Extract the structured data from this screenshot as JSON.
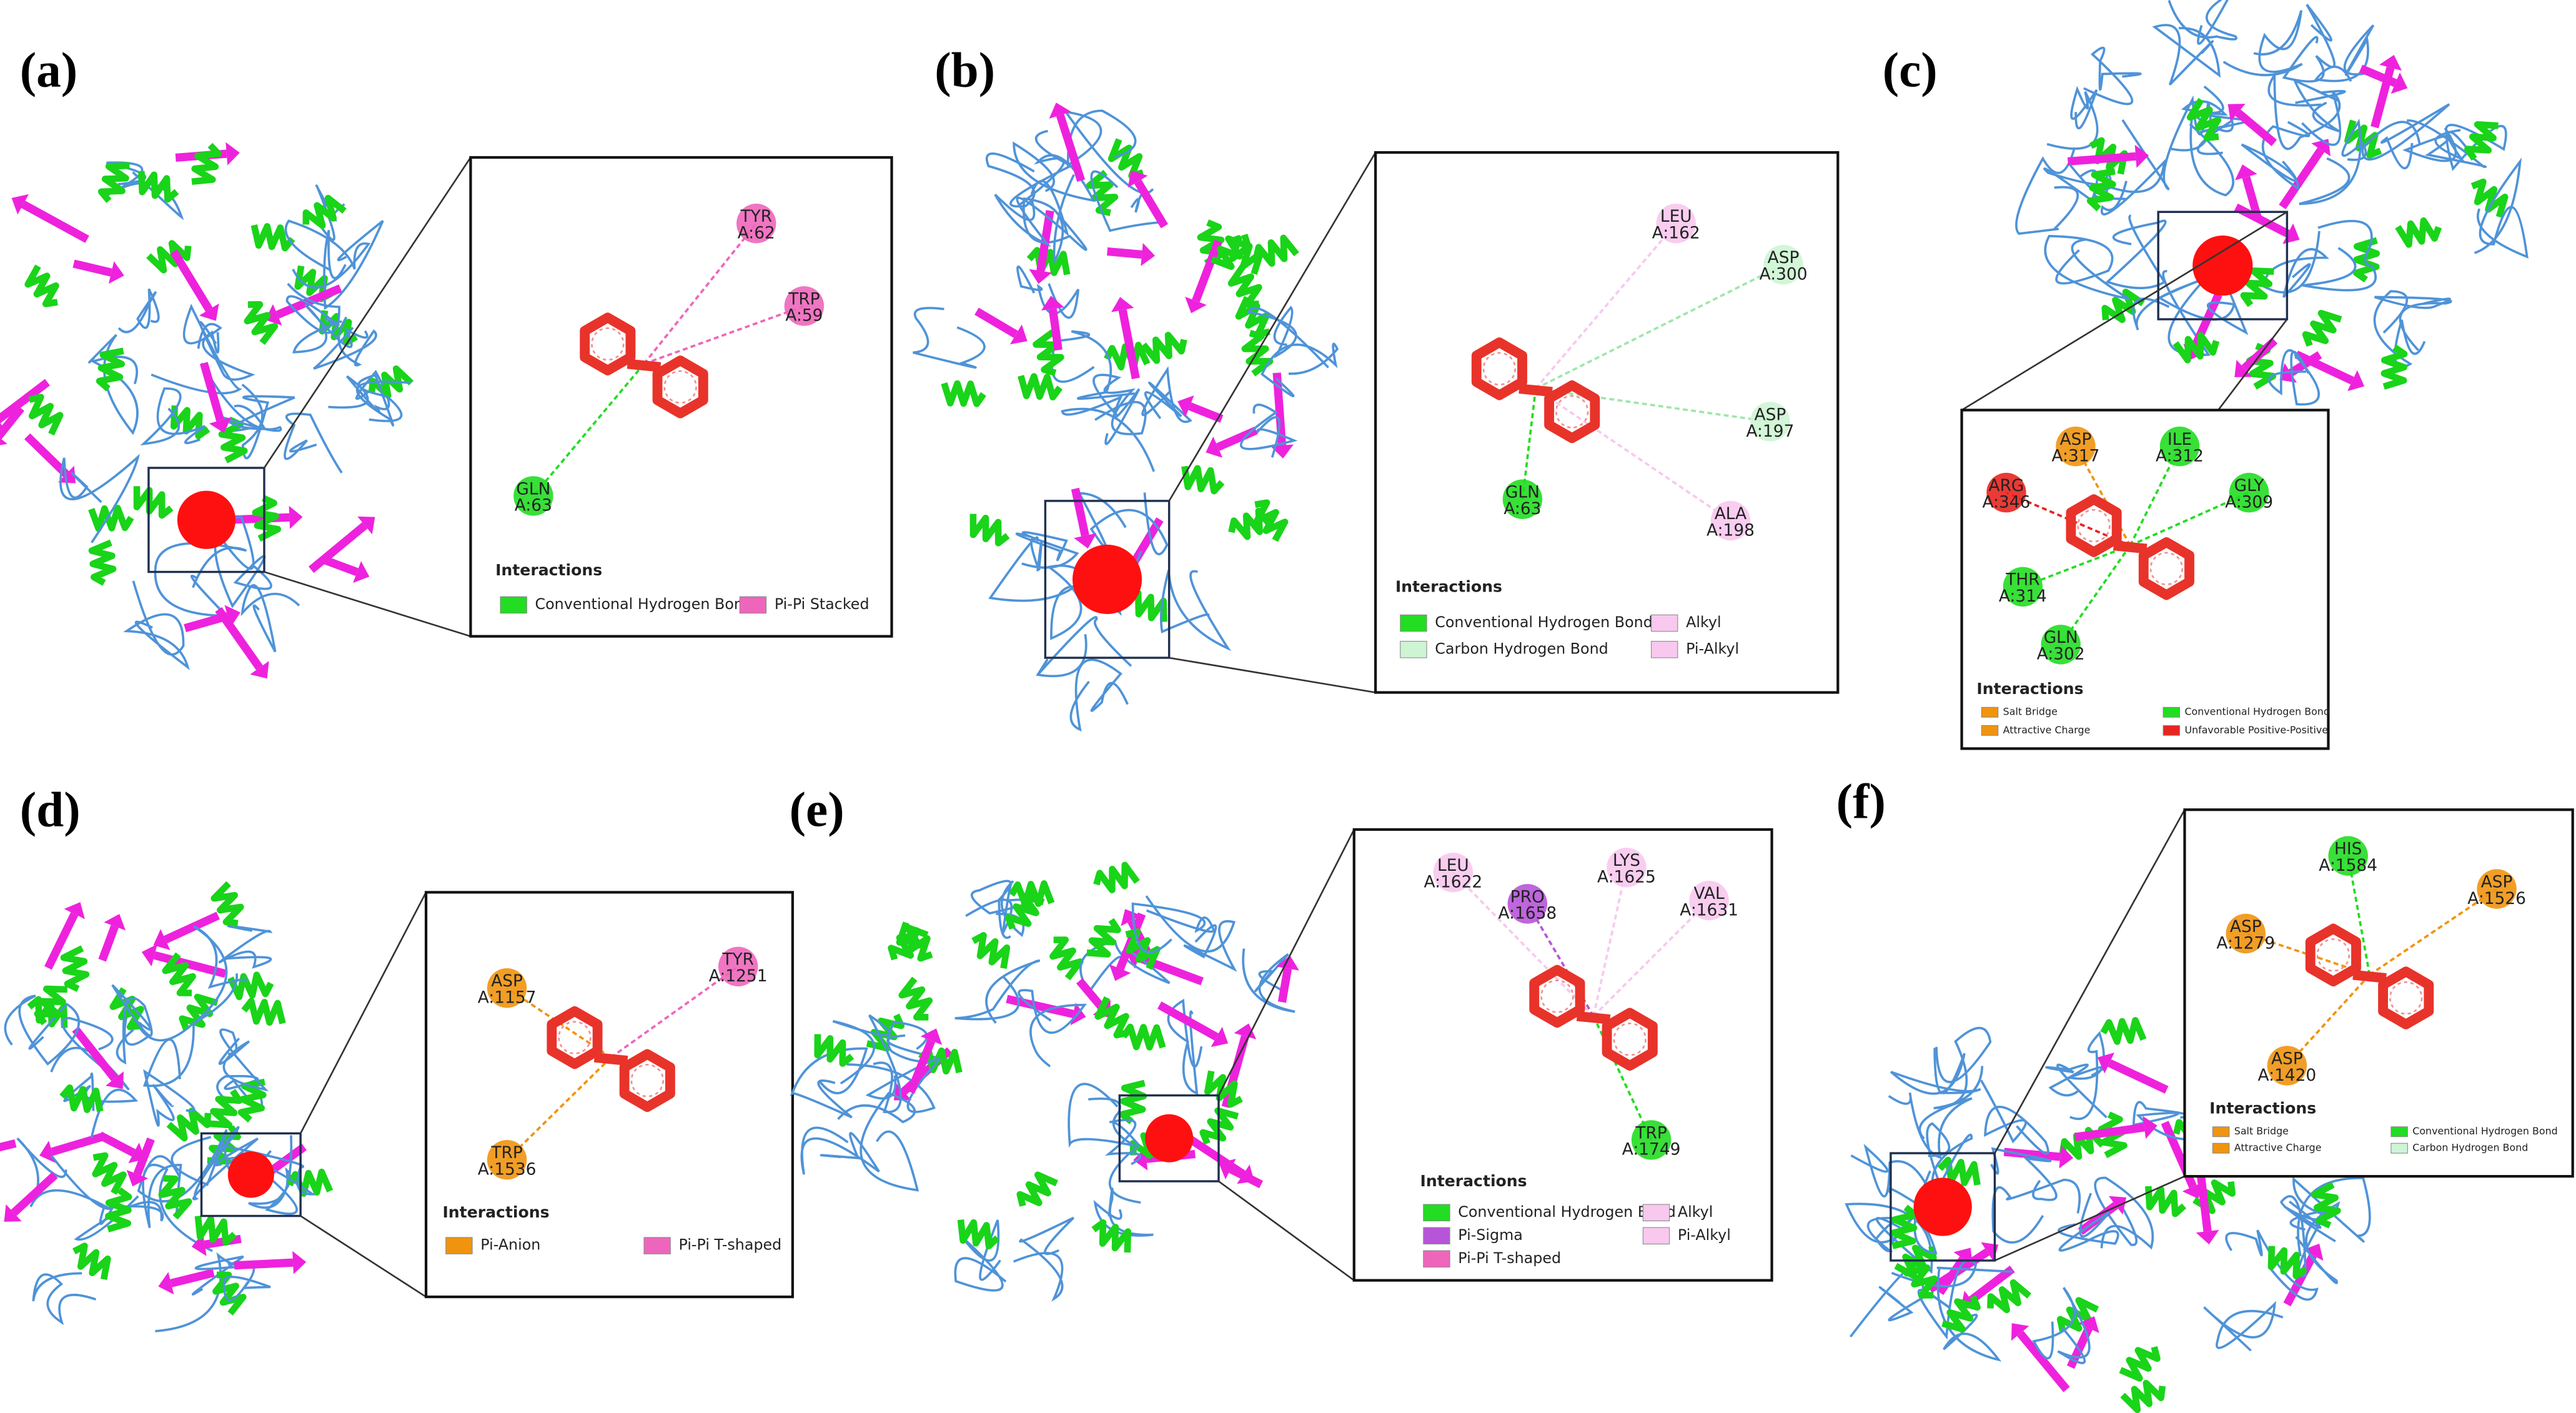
{
  "panels": [
    {
      "label": "(a)",
      "residues": [
        {
          "name": "TYR",
          "id": "A:62"
        },
        {
          "name": "TRP",
          "id": "A:59"
        },
        {
          "name": "GLN",
          "id": "A:63"
        }
      ],
      "legend": {
        "title": "Interactions",
        "items": [
          "Conventional Hydrogen Bond",
          "Pi-Pi Stacked"
        ]
      }
    },
    {
      "label": "(b)",
      "residues": [
        {
          "name": "LEU",
          "id": "A:162"
        },
        {
          "name": "ASP",
          "id": "A:300"
        },
        {
          "name": "ASP",
          "id": "A:197"
        },
        {
          "name": "GLN",
          "id": "A:63"
        },
        {
          "name": "ALA",
          "id": "A:198"
        }
      ],
      "legend": {
        "title": "Interactions",
        "items": [
          "Conventional Hydrogen Bond",
          "Carbon Hydrogen Bond",
          "Alkyl",
          "Pi-Alkyl"
        ]
      }
    },
    {
      "label": "(c)",
      "residues": [
        {
          "name": "ASP",
          "id": "A:317"
        },
        {
          "name": "ILE",
          "id": "A:312"
        },
        {
          "name": "ARG",
          "id": "A:346"
        },
        {
          "name": "GLY",
          "id": "A:309"
        },
        {
          "name": "THR",
          "id": "A:314"
        },
        {
          "name": "GLN",
          "id": "A:302"
        }
      ],
      "legend": {
        "title": "Interactions",
        "items": [
          "Salt Bridge",
          "Attractive Charge",
          "Conventional Hydrogen Bond",
          "Unfavorable Positive-Positive"
        ]
      }
    },
    {
      "label": "(d)",
      "residues": [
        {
          "name": "ASP",
          "id": "A:1157"
        },
        {
          "name": "TYR",
          "id": "A:1251"
        },
        {
          "name": "TRP",
          "id": "A:1536"
        }
      ],
      "legend": {
        "title": "Interactions",
        "items": [
          "Pi-Anion",
          "Pi-Pi T-shaped"
        ]
      }
    },
    {
      "label": "(e)",
      "residues": [
        {
          "name": "LEU",
          "id": "A:1622"
        },
        {
          "name": "PRO",
          "id": "A:1658"
        },
        {
          "name": "LYS",
          "id": "A:1625"
        },
        {
          "name": "VAL",
          "id": "A:1631"
        },
        {
          "name": "TRP",
          "id": "A:1749"
        }
      ],
      "legend": {
        "title": "Interactions",
        "items": [
          "Conventional Hydrogen Bond",
          "Pi-Sigma",
          "Pi-Pi T-shaped",
          "Alkyl",
          "Pi-Alkyl"
        ]
      }
    },
    {
      "label": "(f)",
      "residues": [
        {
          "name": "HIS",
          "id": "A:1584"
        },
        {
          "name": "ASP",
          "id": "A:1526"
        },
        {
          "name": "ASP",
          "id": "A:1279"
        },
        {
          "name": "ASP",
          "id": "A:1420"
        }
      ],
      "legend": {
        "title": "Interactions",
        "items": [
          "Salt Bridge",
          "Attractive Charge",
          "Conventional Hydrogen Bond",
          "Carbon Hydrogen Bond"
        ]
      }
    }
  ]
}
